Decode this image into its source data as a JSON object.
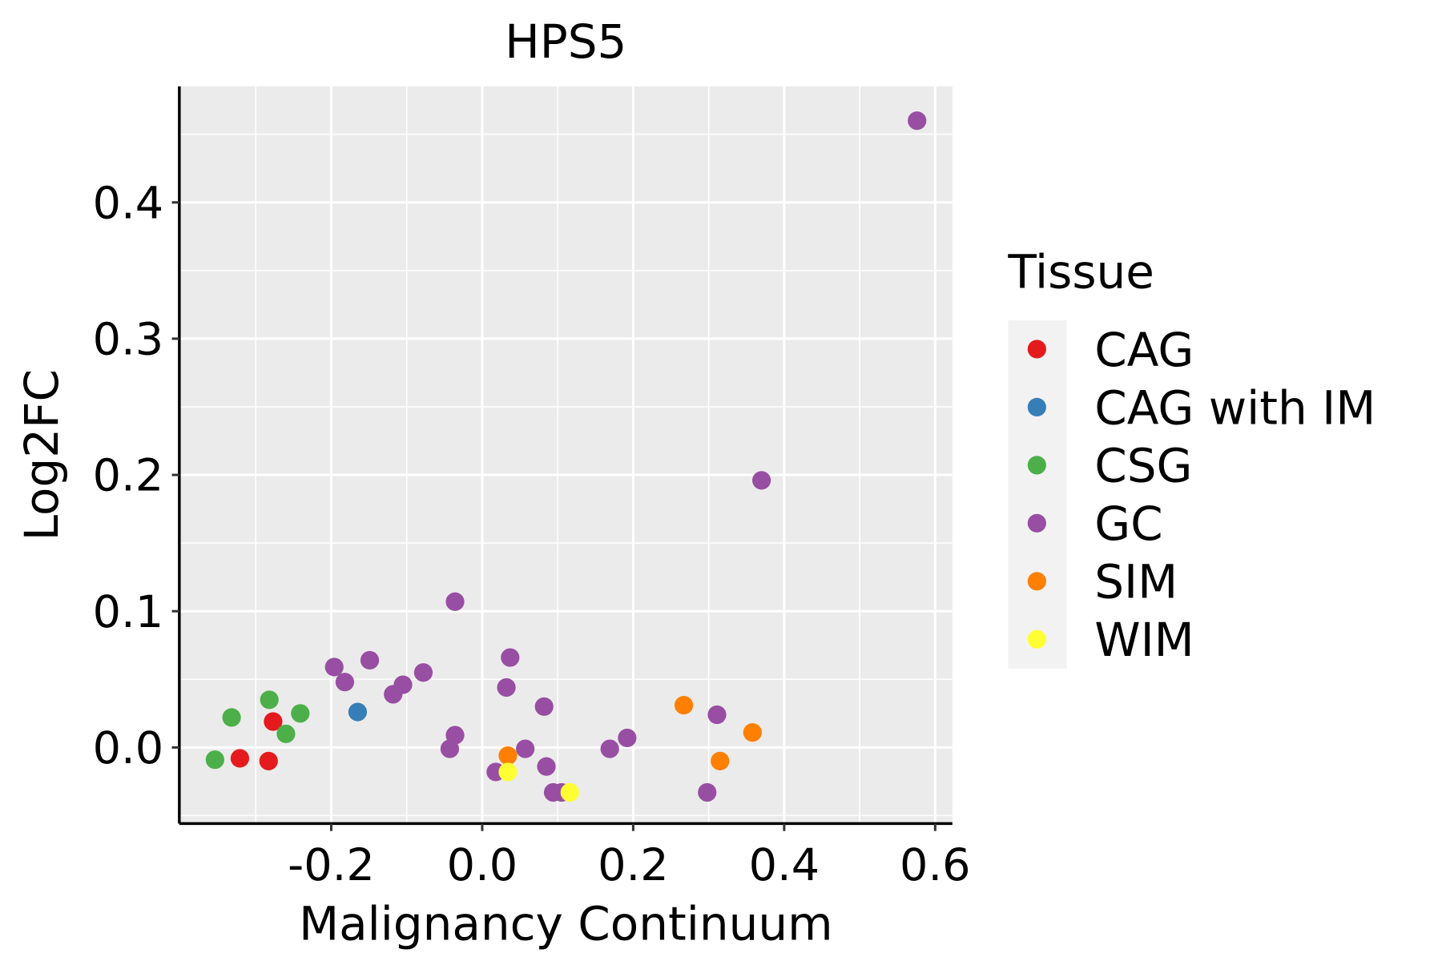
{
  "chart_data": {
    "type": "scatter",
    "title": "HPS5",
    "xlabel": "Malignancy Continuum",
    "ylabel": "Log2FC",
    "xlim": [
      -0.39,
      0.63
    ],
    "ylim": [
      -0.056,
      0.485
    ],
    "xticks": [
      -0.2,
      0.0,
      0.2,
      0.4,
      0.6
    ],
    "xtick_labels": [
      "-0.2",
      "0.0",
      "0.2",
      "0.4",
      "0.6"
    ],
    "yticks": [
      0.0,
      0.1,
      0.2,
      0.3,
      0.4
    ],
    "ytick_labels": [
      "0.0",
      "0.1",
      "0.2",
      "0.3",
      "0.4"
    ],
    "grid": true,
    "legend": {
      "title": "Tissue",
      "placement": "right"
    },
    "series": [
      {
        "name": "CAG",
        "color": "#E41A1C",
        "points": [
          [
            -0.321,
            -0.008
          ],
          [
            -0.283,
            -0.01
          ],
          [
            -0.277,
            0.019
          ]
        ]
      },
      {
        "name": "CAG with IM",
        "color": "#377EB8",
        "points": [
          [
            -0.165,
            0.026
          ]
        ]
      },
      {
        "name": "CSG",
        "color": "#4DAF4A",
        "points": [
          [
            -0.354,
            -0.009
          ],
          [
            -0.332,
            0.022
          ],
          [
            -0.282,
            0.035
          ],
          [
            -0.26,
            0.01
          ],
          [
            -0.241,
            0.025
          ]
        ]
      },
      {
        "name": "GC",
        "color": "#984EA3",
        "points": [
          [
            0.576,
            0.46
          ],
          [
            0.37,
            0.196
          ],
          [
            -0.036,
            0.107
          ],
          [
            -0.196,
            0.059
          ],
          [
            -0.182,
            0.048
          ],
          [
            -0.149,
            0.064
          ],
          [
            -0.118,
            0.039
          ],
          [
            -0.105,
            0.046
          ],
          [
            -0.078,
            0.055
          ],
          [
            0.037,
            0.066
          ],
          [
            0.032,
            0.044
          ],
          [
            -0.036,
            0.009
          ],
          [
            -0.043,
            -0.001
          ],
          [
            0.082,
            0.03
          ],
          [
            0.057,
            -0.001
          ],
          [
            0.018,
            -0.018
          ],
          [
            0.085,
            -0.014
          ],
          [
            0.094,
            -0.033
          ],
          [
            0.105,
            -0.033
          ],
          [
            0.169,
            -0.001
          ],
          [
            0.192,
            0.007
          ],
          [
            0.311,
            0.024
          ],
          [
            0.298,
            -0.033
          ]
        ]
      },
      {
        "name": "SIM",
        "color": "#FF7F00",
        "points": [
          [
            0.034,
            -0.006
          ],
          [
            0.267,
            0.031
          ],
          [
            0.358,
            0.011
          ],
          [
            0.315,
            -0.01
          ]
        ]
      },
      {
        "name": "WIM",
        "color": "#FFFF33",
        "points": [
          [
            0.034,
            -0.018
          ],
          [
            0.116,
            -0.033
          ]
        ]
      }
    ]
  }
}
